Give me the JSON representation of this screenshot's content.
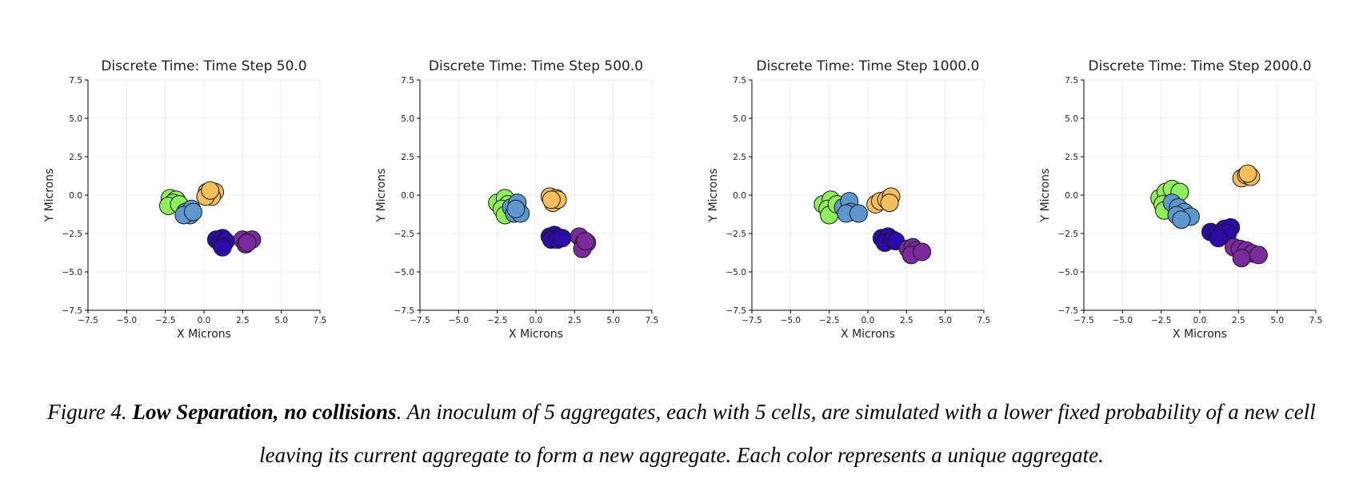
{
  "colors": {
    "green": "#90EE5A",
    "orange": "#F4BE5C",
    "steelblue": "#5E96CE",
    "indigo": "#2C0AA8",
    "purple": "#7A2A9C"
  },
  "chart_data": [
    {
      "type": "scatter",
      "title": "Discrete Time: Time Step 50.0",
      "xlabel": "X Microns",
      "ylabel": "Y Microns",
      "xlim": [
        -7.5,
        7.5
      ],
      "ylim": [
        -7.5,
        7.5
      ],
      "xticks": [
        "−7.5",
        "−5.0",
        "−2.5",
        "0.0",
        "2.5",
        "5.0",
        "7.5"
      ],
      "yticks": [
        "−7.5",
        "−5.0",
        "−2.5",
        "0.0",
        "2.5",
        "5.0",
        "7.5"
      ],
      "grid": true,
      "series": [
        {
          "color": "green",
          "points": [
            [
              -2.2,
              -0.2
            ],
            [
              -1.8,
              -0.3
            ],
            [
              -2.0,
              -0.5
            ],
            [
              -2.3,
              -0.7
            ],
            [
              -1.6,
              -0.6
            ]
          ]
        },
        {
          "color": "orange",
          "points": [
            [
              0.2,
              0.2
            ],
            [
              0.7,
              0.2
            ],
            [
              0.5,
              -0.1
            ],
            [
              0.1,
              -0.1
            ],
            [
              0.4,
              0.3
            ]
          ]
        },
        {
          "color": "steelblue",
          "points": [
            [
              -1.2,
              -1.1
            ],
            [
              -0.8,
              -0.9
            ],
            [
              -0.9,
              -1.3
            ],
            [
              -1.3,
              -1.3
            ],
            [
              -0.7,
              -1.1
            ]
          ]
        },
        {
          "color": "indigo",
          "points": [
            [
              0.8,
              -2.9
            ],
            [
              1.2,
              -2.8
            ],
            [
              1.1,
              -3.2
            ],
            [
              1.4,
              -3.0
            ],
            [
              1.2,
              -3.4
            ]
          ]
        },
        {
          "color": "purple",
          "points": [
            [
              2.5,
              -2.9
            ],
            [
              2.9,
              -3.0
            ],
            [
              2.7,
              -3.2
            ],
            [
              3.1,
              -2.9
            ],
            [
              2.8,
              -3.1
            ]
          ]
        }
      ]
    },
    {
      "type": "scatter",
      "title": "Discrete Time: Time Step 500.0",
      "xlabel": "X Microns",
      "ylabel": "Y Microns",
      "xlim": [
        -7.5,
        7.5
      ],
      "ylim": [
        -7.5,
        7.5
      ],
      "xticks": [
        "−7.5",
        "−5.0",
        "−2.5",
        "0.0",
        "2.5",
        "5.0",
        "7.5"
      ],
      "yticks": [
        "−7.5",
        "−5.0",
        "−2.5",
        "0.0",
        "2.5",
        "5.0",
        "7.5"
      ],
      "grid": true,
      "series": [
        {
          "color": "green",
          "points": [
            [
              -2.5,
              -0.5
            ],
            [
              -2.0,
              -0.2
            ],
            [
              -1.8,
              -0.6
            ],
            [
              -2.2,
              -0.9
            ],
            [
              -2.0,
              -1.3
            ]
          ]
        },
        {
          "color": "orange",
          "points": [
            [
              0.9,
              -0.1
            ],
            [
              1.3,
              -0.2
            ],
            [
              1.1,
              -0.5
            ],
            [
              1.4,
              -0.3
            ],
            [
              1.0,
              -0.3
            ]
          ]
        },
        {
          "color": "steelblue",
          "points": [
            [
              -1.6,
              -0.8
            ],
            [
              -1.2,
              -0.5
            ],
            [
              -1.4,
              -1.2
            ],
            [
              -1.0,
              -1.2
            ],
            [
              -1.3,
              -0.9
            ]
          ]
        },
        {
          "color": "indigo",
          "points": [
            [
              0.9,
              -2.7
            ],
            [
              1.2,
              -2.6
            ],
            [
              1.0,
              -2.9
            ],
            [
              1.4,
              -2.9
            ],
            [
              1.7,
              -2.8
            ]
          ]
        },
        {
          "color": "purple",
          "points": [
            [
              2.8,
              -2.7
            ],
            [
              3.1,
              -3.1
            ],
            [
              3.3,
              -3.1
            ],
            [
              3.0,
              -3.5
            ],
            [
              3.2,
              -3.0
            ]
          ]
        }
      ]
    },
    {
      "type": "scatter",
      "title": "Discrete Time: Time Step 1000.0",
      "xlabel": "X Microns",
      "ylabel": "Y Microns",
      "xlim": [
        -7.5,
        7.5
      ],
      "ylim": [
        -7.5,
        7.5
      ],
      "xticks": [
        "−7.5",
        "−5.0",
        "−2.5",
        "0.0",
        "2.5",
        "5.0",
        "7.5"
      ],
      "yticks": [
        "−7.5",
        "−5.0",
        "−2.5",
        "0.0",
        "2.5",
        "5.0",
        "7.5"
      ],
      "grid": true,
      "series": [
        {
          "color": "green",
          "points": [
            [
              -2.9,
              -0.6
            ],
            [
              -2.4,
              -0.3
            ],
            [
              -2.6,
              -0.9
            ],
            [
              -2.5,
              -1.3
            ],
            [
              -2.0,
              -0.6
            ]
          ]
        },
        {
          "color": "orange",
          "points": [
            [
              0.5,
              -0.6
            ],
            [
              0.8,
              -0.4
            ],
            [
              1.2,
              -0.3
            ],
            [
              1.5,
              -0.1
            ],
            [
              1.4,
              -0.5
            ]
          ]
        },
        {
          "color": "steelblue",
          "points": [
            [
              -1.6,
              -0.8
            ],
            [
              -1.2,
              -0.4
            ],
            [
              -1.1,
              -1.1
            ],
            [
              -1.4,
              -1.2
            ],
            [
              -0.6,
              -1.2
            ]
          ]
        },
        {
          "color": "indigo",
          "points": [
            [
              0.9,
              -2.8
            ],
            [
              1.3,
              -2.7
            ],
            [
              1.1,
              -3.1
            ],
            [
              1.6,
              -2.9
            ],
            [
              1.8,
              -3.0
            ]
          ]
        },
        {
          "color": "purple",
          "points": [
            [
              2.6,
              -3.5
            ],
            [
              2.9,
              -3.4
            ],
            [
              3.1,
              -3.6
            ],
            [
              2.8,
              -3.9
            ],
            [
              3.5,
              -3.7
            ]
          ]
        }
      ]
    },
    {
      "type": "scatter",
      "title": "Discrete Time: Time Step 2000.0",
      "xlabel": "X Microns",
      "ylabel": "Y Microns",
      "xlim": [
        -7.5,
        7.5
      ],
      "ylim": [
        -7.5,
        7.5
      ],
      "xticks": [
        "−7.5",
        "−5.0",
        "−2.5",
        "0.0",
        "2.5",
        "5.0",
        "7.5"
      ],
      "yticks": [
        "−7.5",
        "−5.0",
        "−2.5",
        "0.0",
        "2.5",
        "5.0",
        "7.5"
      ],
      "grid": true,
      "series": [
        {
          "color": "green",
          "points": [
            [
              -2.6,
              -0.2
            ],
            [
              -2.2,
              0.2
            ],
            [
              -1.8,
              0.4
            ],
            [
              -1.3,
              0.2
            ],
            [
              -2.4,
              -0.6
            ],
            [
              -2.3,
              -1.0
            ]
          ]
        },
        {
          "color": "orange",
          "points": [
            [
              2.7,
              1.1
            ],
            [
              3.0,
              1.3
            ],
            [
              3.3,
              1.2
            ],
            [
              3.1,
              1.4
            ]
          ]
        },
        {
          "color": "steelblue",
          "points": [
            [
              -1.8,
              -0.5
            ],
            [
              -1.4,
              -0.8
            ],
            [
              -1.0,
              -1.1
            ],
            [
              -1.5,
              -1.3
            ],
            [
              -0.6,
              -1.4
            ],
            [
              -1.2,
              -1.6
            ]
          ]
        },
        {
          "color": "indigo",
          "points": [
            [
              0.7,
              -2.4
            ],
            [
              1.1,
              -2.5
            ],
            [
              1.6,
              -2.2
            ],
            [
              2.0,
              -2.1
            ],
            [
              1.8,
              -2.5
            ],
            [
              1.2,
              -2.8
            ]
          ]
        },
        {
          "color": "purple",
          "points": [
            [
              2.2,
              -3.4
            ],
            [
              2.6,
              -3.5
            ],
            [
              3.0,
              -3.6
            ],
            [
              3.4,
              -3.8
            ],
            [
              2.7,
              -4.1
            ],
            [
              3.8,
              -3.9
            ]
          ]
        }
      ]
    }
  ],
  "caption": {
    "prefix": "Figure 4. ",
    "bold": "Low Separation, no collisions",
    "text": ". An inoculum of 5 aggregates, each with 5 cells, are simulated with a lower fixed probability of a new cell leaving its current aggregate to form a new  aggregate. Each color represents a unique aggregate."
  }
}
